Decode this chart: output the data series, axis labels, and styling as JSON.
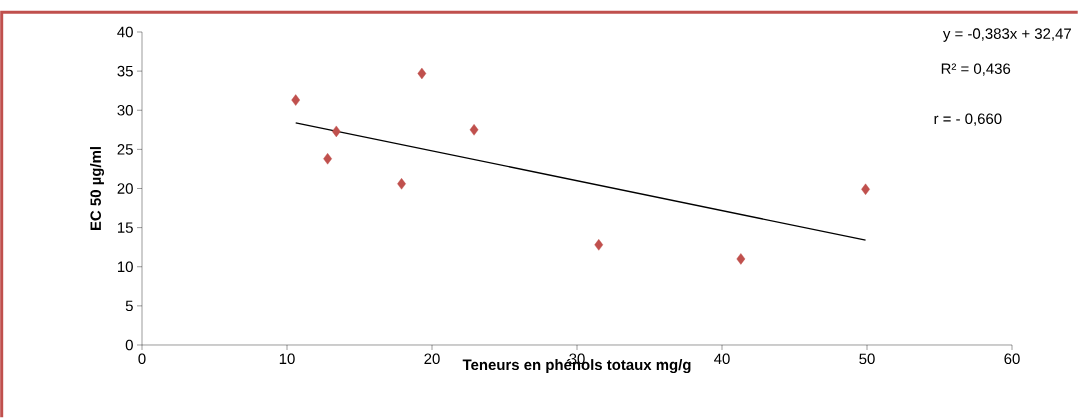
{
  "chart_data": {
    "type": "scatter",
    "xlabel": "Teneurs en phénols totaux mg/g",
    "ylabel": "EC 50 µg/ml",
    "xlim": [
      0,
      60
    ],
    "xticks": [
      0,
      10,
      20,
      30,
      40,
      50,
      60
    ],
    "ylim": [
      0,
      40
    ],
    "yticks": [
      0,
      5,
      10,
      15,
      20,
      25,
      30,
      35,
      40
    ],
    "grid": false,
    "series": [
      {
        "color": "#c0504d",
        "marker": "diamond",
        "x": [
          10.6,
          12.8,
          13.4,
          17.9,
          19.3,
          22.9,
          31.5,
          41.3,
          49.9
        ],
        "values": [
          31.3,
          23.8,
          27.3,
          20.6,
          34.7,
          27.5,
          12.8,
          11.0,
          19.9
        ]
      },
      {
        "type": "line",
        "color": "#000000",
        "marker": "none",
        "line_style": "solid",
        "x": [
          10.6,
          49.9
        ],
        "values": [
          28.4,
          13.4
        ]
      }
    ],
    "annotations": [
      "y = -0,383x + 32,47",
      "R² = 0,436",
      "r   = - 0,660"
    ]
  }
}
